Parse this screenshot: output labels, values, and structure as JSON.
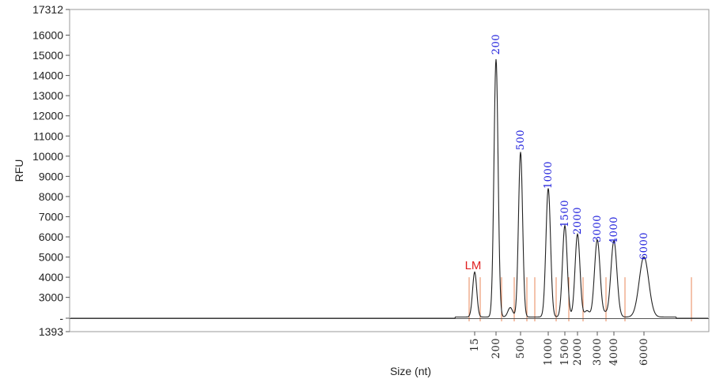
{
  "chart_data": {
    "type": "line",
    "xlabel": "Size (nt)",
    "ylabel": "RFU",
    "ylim": [
      1393,
      17312
    ],
    "y_ticks": [
      "17312",
      "16000",
      "15000",
      "14000",
      "13000",
      "12000",
      "11000",
      "10000",
      "9000",
      "8000",
      "7000",
      "6000",
      "5000",
      "4000",
      "3000",
      "-",
      "1393"
    ],
    "x_ticks": [
      "15",
      "200",
      "500",
      "1000",
      "1500",
      "2000",
      "3000",
      "4000",
      "6000"
    ],
    "peaks": [
      {
        "size": "15",
        "label": "LM",
        "rfu": 4200
      },
      {
        "size": "200",
        "label": "200",
        "rfu": 14750
      },
      {
        "size": "500",
        "label": "500",
        "rfu": 10150
      },
      {
        "size": "1000",
        "label": "1000",
        "rfu": 8350
      },
      {
        "size": "1500",
        "label": "1500",
        "rfu": 6500
      },
      {
        "size": "2000",
        "label": "2000",
        "rfu": 6080
      },
      {
        "size": "3000",
        "label": "3000",
        "rfu": 5800
      },
      {
        "size": "4000",
        "label": "4000",
        "rfu": 5750
      },
      {
        "size": "6000",
        "label": "6000",
        "rfu": 4950
      }
    ],
    "baseline_rfu": 2000,
    "colors": {
      "trace": "#222222",
      "peak_labels": "#1a1adb",
      "lower_marker": "#e02020",
      "markers": "#e8875a",
      "baseline": "#e8875a"
    },
    "grid": false
  }
}
